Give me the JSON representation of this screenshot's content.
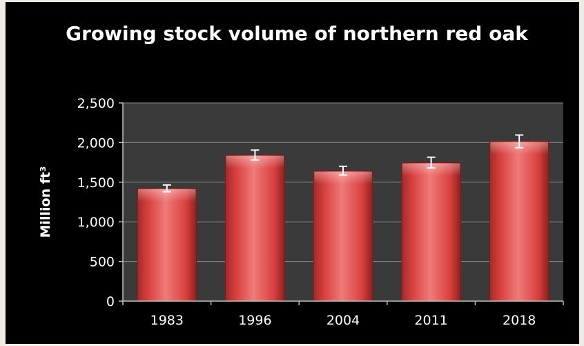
{
  "chart_data": {
    "type": "bar",
    "title": "Growing stock volume of northern red oak",
    "xlabel": "",
    "ylabel": "Million ft³",
    "categories": [
      "1983",
      "1996",
      "2004",
      "2011",
      "2018"
    ],
    "values": [
      1420,
      1840,
      1640,
      1745,
      2015
    ],
    "error_bars": [
      [
        1380,
        1465
      ],
      [
        1780,
        1905
      ],
      [
        1590,
        1700
      ],
      [
        1680,
        1815
      ],
      [
        1935,
        2095
      ]
    ],
    "ylim": [
      0,
      2500
    ],
    "yticks": [
      0,
      500,
      1000,
      1500,
      2000,
      2500
    ],
    "ytick_labels": [
      "0",
      "500",
      "1,000",
      "1,500",
      "2,000",
      "2,500"
    ],
    "grid": true,
    "legend": "none",
    "colors": {
      "bar": "#d8403f",
      "bar_highlight": "#ee7b7a",
      "bar_shadow": "#8f1f1e",
      "plot_background": "#3a3a3a",
      "frame_background": "#000000",
      "text": "#ffffff",
      "error_bar": "#ffffff"
    }
  }
}
